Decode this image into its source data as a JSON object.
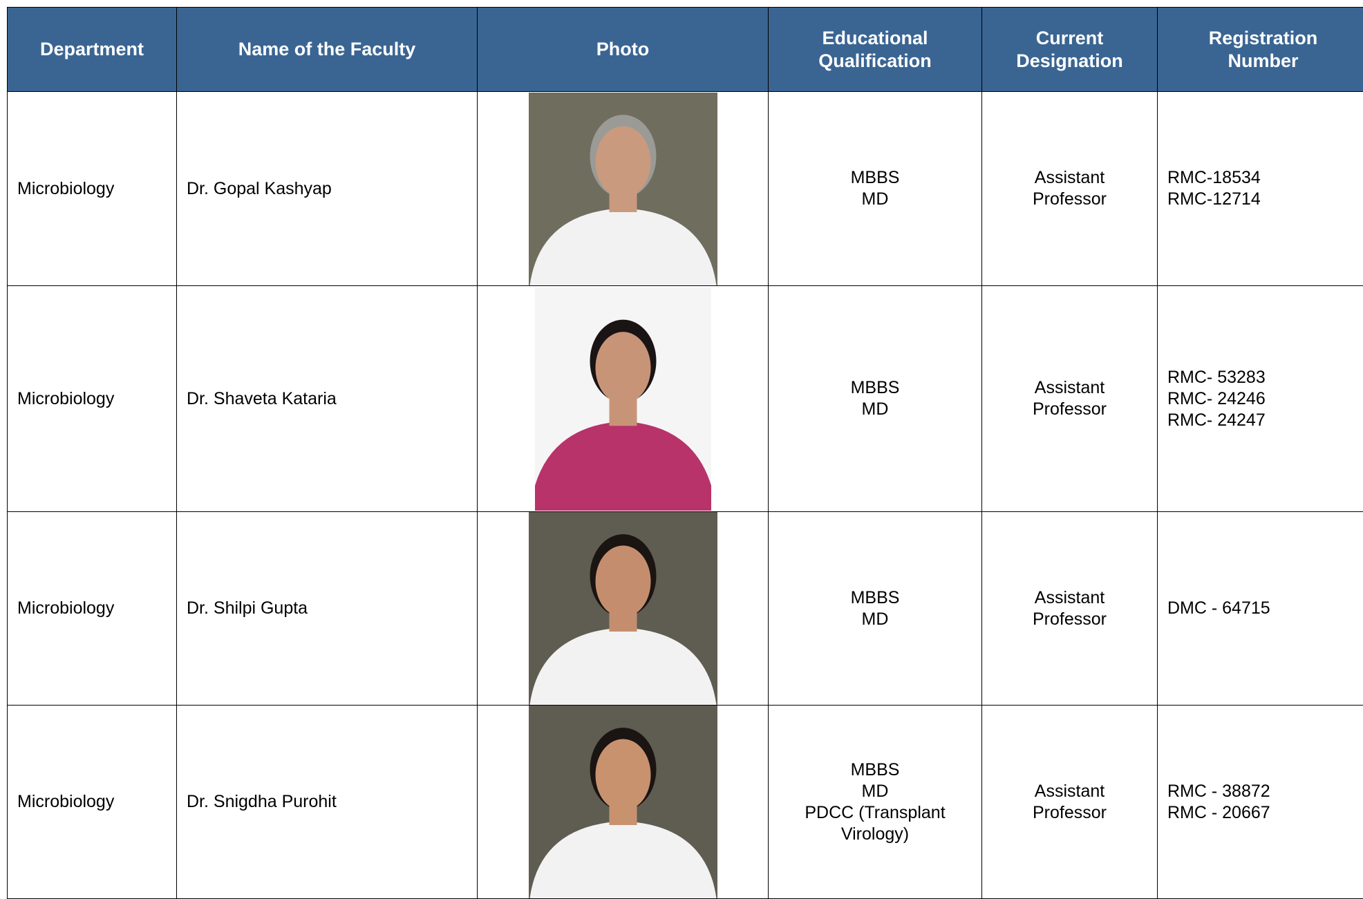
{
  "table": {
    "headers": [
      "Department",
      "Name of the Faculty",
      "Photo",
      "Educational Qualification",
      "Current Designation",
      "Registration Number"
    ],
    "rows": [
      {
        "department": "Microbiology",
        "name": "Dr. Gopal Kashyap",
        "qualification": [
          "MBBS",
          "MD"
        ],
        "designation": "Assistant Professor",
        "registration": [
          "RMC-18534",
          "RMC-12714"
        ]
      },
      {
        "department": "Microbiology",
        "name": "Dr. Shaveta Kataria",
        "qualification": [
          "MBBS",
          "MD"
        ],
        "designation": "Assistant Professor",
        "registration": [
          "RMC- 53283",
          "RMC- 24246",
          "RMC- 24247"
        ]
      },
      {
        "department": "Microbiology",
        "name": "Dr. Shilpi Gupta",
        "qualification": [
          "MBBS",
          "MD"
        ],
        "designation": "Assistant Professor",
        "registration": [
          "DMC - 64715"
        ]
      },
      {
        "department": "Microbiology",
        "name": "Dr. Snigdha Purohit",
        "qualification": [
          "MBBS",
          "MD",
          "PDCC (Transplant Virology)"
        ],
        "designation": "Assistant Professor",
        "registration": [
          "RMC - 38872",
          "RMC - 20667"
        ]
      }
    ]
  }
}
